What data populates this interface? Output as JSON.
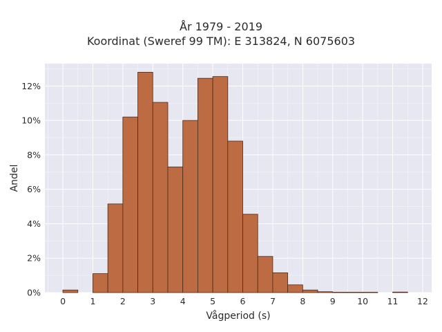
{
  "chart_data": {
    "type": "bar",
    "title": "År 1979 - 2019",
    "subtitle": "Koordinat (Sweref 99 TM): E 313824, N 6075603",
    "xlabel": "Vågperiod (s)",
    "ylabel": "Andel",
    "bin_width": 0.5,
    "bin_starts": [
      0,
      0.5,
      1,
      1.5,
      2,
      2.5,
      3,
      3.5,
      4,
      4.5,
      5,
      5.5,
      6,
      6.5,
      7,
      7.5,
      8,
      8.5,
      9,
      9.5,
      10,
      10.5,
      11,
      11.5
    ],
    "values": [
      0.15,
      0,
      1.1,
      5.15,
      10.2,
      12.8,
      11.05,
      7.3,
      10.0,
      12.45,
      12.55,
      8.8,
      4.55,
      2.1,
      1.15,
      0.45,
      0.15,
      0.05,
      0.02,
      0.02,
      0.02,
      0,
      0.03,
      0
    ],
    "xlim": [
      -0.6,
      12.3
    ],
    "ylim": [
      0,
      13.3
    ],
    "x_ticks": [
      0,
      1,
      2,
      3,
      4,
      5,
      6,
      7,
      8,
      9,
      10,
      11,
      12
    ],
    "x_tick_labels": [
      "0",
      "1",
      "2",
      "3",
      "4",
      "5",
      "6",
      "7",
      "8",
      "9",
      "10",
      "11",
      "12"
    ],
    "y_ticks": [
      0,
      2,
      4,
      6,
      8,
      10,
      12
    ],
    "y_tick_labels": [
      "0%",
      "2%",
      "4%",
      "6%",
      "8%",
      "10%",
      "12%"
    ],
    "grid": true,
    "colors": {
      "bar_fill": "#bd6b42",
      "bar_edge": "#4a2a1a",
      "plot_bg": "#e6e7f0",
      "grid": "#ffffff"
    }
  }
}
